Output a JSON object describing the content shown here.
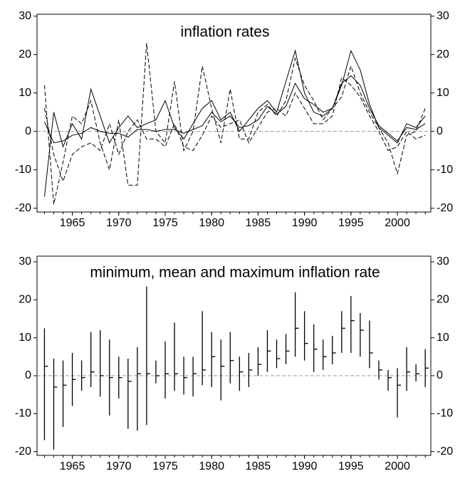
{
  "chart_data": [
    {
      "type": "line",
      "title": "inflation rates",
      "x": [
        1962,
        1963,
        1964,
        1965,
        1966,
        1967,
        1968,
        1969,
        1970,
        1971,
        1972,
        1973,
        1974,
        1975,
        1976,
        1977,
        1978,
        1979,
        1980,
        1981,
        1982,
        1983,
        1984,
        1985,
        1986,
        1987,
        1988,
        1989,
        1990,
        1991,
        1992,
        1993,
        1994,
        1995,
        1996,
        1997,
        1998,
        1999,
        2000,
        2001,
        2002,
        2003
      ],
      "series": [
        {
          "color": "#000000",
          "dashed": false,
          "values": [
            2.5,
            -3,
            -2.5,
            -1,
            -0.5,
            1,
            0,
            -0.5,
            -0.5,
            -1.5,
            0.5,
            0.5,
            0,
            0.5,
            0.5,
            -0.5,
            0.5,
            1.5,
            5,
            2.5,
            4,
            1,
            1.5,
            3,
            6.5,
            4.5,
            6.5,
            12.5,
            8.5,
            7,
            5,
            6,
            12.5,
            14.5,
            12,
            6,
            1.5,
            -0.5,
            -2.5,
            1,
            0.5,
            2
          ]
        },
        {
          "color": "#000000",
          "dashed": true,
          "values": [
            12,
            -19,
            -8,
            4,
            2,
            8,
            -3,
            -10,
            3,
            -14,
            -14,
            23,
            0,
            -3,
            13,
            -5,
            0,
            17,
            6,
            -3,
            11,
            -2,
            -2,
            5,
            7,
            4,
            8,
            19,
            12,
            8,
            3,
            6,
            9,
            17,
            10,
            5,
            1,
            -3,
            -11,
            -1,
            0,
            6
          ]
        },
        {
          "color": "#000000",
          "dashed": false,
          "values": [
            -17,
            5,
            -4,
            2,
            -2,
            11,
            4,
            -3,
            1,
            4,
            1,
            2,
            3,
            8,
            1,
            -2,
            2,
            6,
            8,
            3,
            5,
            0,
            3,
            6,
            8,
            5,
            13,
            21,
            10,
            5,
            4,
            6,
            12,
            21,
            16,
            7,
            1,
            -1,
            -3,
            2,
            1,
            4
          ]
        },
        {
          "color": "#000000",
          "dashed": true,
          "values": [
            6,
            -6,
            -13,
            -6,
            -4,
            -3,
            -5,
            2,
            -6,
            0,
            3,
            -2,
            -2,
            -4,
            2,
            -4,
            -5,
            -1,
            4,
            1,
            2,
            3,
            -3,
            1,
            5,
            6,
            4,
            10,
            6,
            2,
            2,
            4,
            14,
            12,
            9,
            4,
            0,
            -5,
            -4,
            0,
            -2,
            -1
          ]
        }
      ],
      "xlim": [
        1961.2,
        2003.6
      ],
      "xticks": [
        1965,
        1970,
        1975,
        1980,
        1985,
        1990,
        1995,
        2000
      ],
      "ylim": [
        -21,
        30.5
      ],
      "yticks": [
        -20,
        -10,
        0,
        10,
        20,
        30
      ],
      "zero_line": true
    },
    {
      "type": "range",
      "title": "minimum, mean and maximum inflation rate",
      "x": [
        1962,
        1963,
        1964,
        1965,
        1966,
        1967,
        1968,
        1969,
        1970,
        1971,
        1972,
        1973,
        1974,
        1975,
        1976,
        1977,
        1978,
        1979,
        1980,
        1981,
        1982,
        1983,
        1984,
        1985,
        1986,
        1987,
        1988,
        1989,
        1990,
        1991,
        1992,
        1993,
        1994,
        1995,
        1996,
        1997,
        1998,
        1999,
        2000,
        2001,
        2002,
        2003
      ],
      "low": [
        -17,
        -19.5,
        -13.5,
        -8,
        -4,
        -3,
        -5.5,
        -10.5,
        -6,
        -14,
        -14.5,
        -13,
        -2,
        -6,
        -4,
        -5,
        -5.5,
        -2.5,
        -3,
        -6.5,
        -2,
        -4,
        -3,
        0,
        1,
        2,
        3,
        5,
        4,
        1,
        1.5,
        3,
        6,
        6,
        5,
        2,
        -1,
        -4,
        -11,
        -4,
        -1.5,
        -3
      ],
      "values": [
        2.5,
        -3,
        -2.5,
        -1,
        -0.5,
        1,
        0,
        -0.5,
        -0.5,
        -1.5,
        0.5,
        0.5,
        0,
        0.5,
        0.5,
        -0.5,
        0.5,
        1.5,
        5,
        2.5,
        4,
        1,
        1.5,
        3,
        6.5,
        4.5,
        6.5,
        12.5,
        8.5,
        7,
        5,
        6,
        12.5,
        14.5,
        12,
        6,
        1.5,
        -0.5,
        -2.5,
        1,
        0.5,
        2
      ],
      "high": [
        12.5,
        4.5,
        4,
        6,
        4,
        11.5,
        12,
        9.5,
        5,
        4.5,
        7.5,
        23.5,
        4,
        9,
        14,
        5,
        5,
        17,
        11.5,
        9.5,
        11.5,
        5,
        6,
        7.5,
        12,
        9.5,
        11,
        22,
        17,
        13.5,
        9.5,
        10.5,
        17,
        21,
        16.5,
        14.5,
        4,
        1.5,
        2,
        7.5,
        3,
        7
      ],
      "color": "#000000",
      "xlim": [
        1961.2,
        2003.6
      ],
      "xticks": [
        1965,
        1970,
        1975,
        1980,
        1985,
        1990,
        1995,
        2000
      ],
      "ylim": [
        -21,
        31.5
      ],
      "yticks": [
        -20,
        -10,
        0,
        10,
        20,
        30
      ],
      "zero_line": true
    }
  ]
}
